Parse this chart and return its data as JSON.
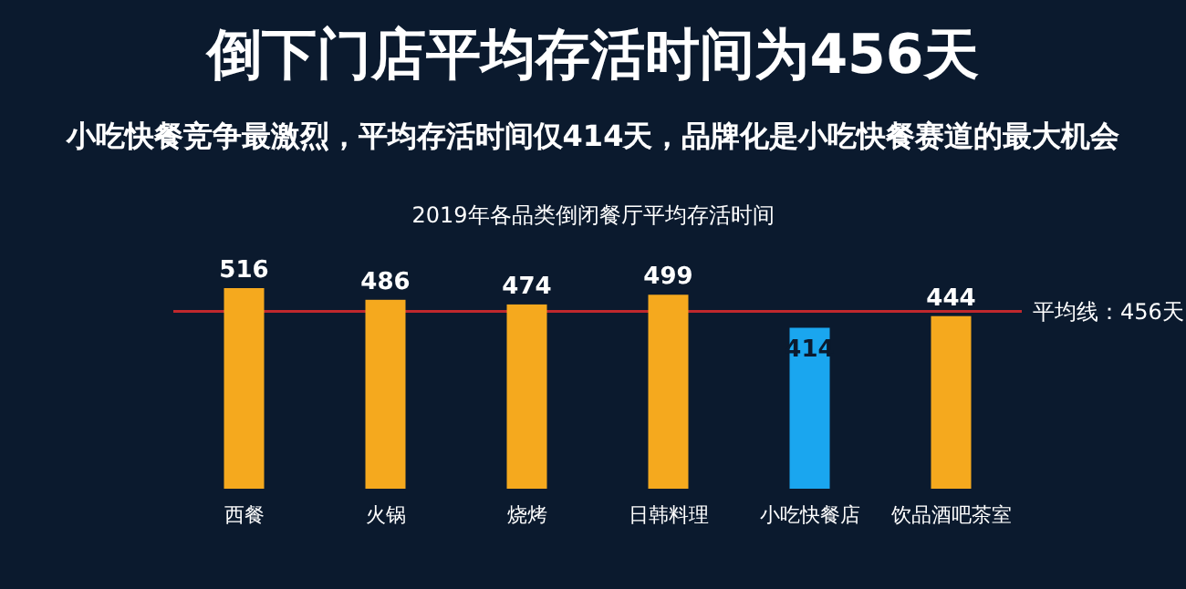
{
  "chart_data": {
    "type": "bar",
    "title": "倒下门店平均存活时间为456天",
    "subtitle": "小吃快餐竞争最激烈，平均存活时间仅414天，品牌化是小吃快餐赛道的最大机会",
    "annotations": [
      "2019年各品类倒闭餐厅平均存活时间"
    ],
    "categories": [
      "西餐",
      "火锅",
      "烧烤",
      "日韩料理",
      "小吃快餐店",
      "饮品酒吧茶室"
    ],
    "values": [
      516,
      486,
      474,
      499,
      414,
      444
    ],
    "colors": [
      "#f5a91e",
      "#f5a91e",
      "#f5a91e",
      "#f5a91e",
      "#1aa6ef",
      "#f5a91e"
    ],
    "data_labels": true,
    "ref_lines": [
      {
        "axis": "y",
        "value": 456,
        "label": "平均线：456天",
        "color": "#c0282d",
        "line_style": "solid"
      }
    ],
    "marker": "none"
  }
}
